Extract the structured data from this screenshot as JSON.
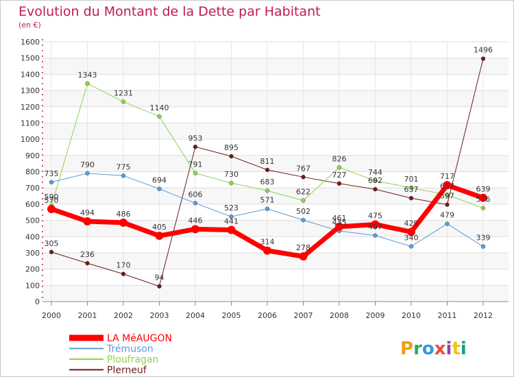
{
  "title": "Evolution du Montant de la Dette par Habitant",
  "subtitle": "(en €)",
  "logo": "Proxiti",
  "colors": {
    "title": "#c0185a",
    "grid": "#dddddd",
    "axis": "#c0185a",
    "bg_band": "#f4f4f4"
  },
  "chart_data": {
    "type": "line",
    "title": "Evolution du Montant de la Dette par Habitant",
    "subtitle": "(en €)",
    "xlabel": "",
    "ylabel": "",
    "ylim": [
      0,
      1600
    ],
    "y_ticks": [
      0,
      100,
      200,
      300,
      400,
      500,
      600,
      700,
      800,
      900,
      1000,
      1100,
      1200,
      1300,
      1400,
      1500,
      1600
    ],
    "categories": [
      "2000",
      "2001",
      "2002",
      "2003",
      "2004",
      "2005",
      "2006",
      "2007",
      "2008",
      "2009",
      "2010",
      "2011",
      "2012"
    ],
    "grid": true,
    "legend_position": "bottom-left",
    "series": [
      {
        "name": "LA MéAUGON",
        "color": "#ff0000",
        "width": 7,
        "marker": 6,
        "values": [
          570,
          494,
          486,
          405,
          446,
          441,
          314,
          278,
          461,
          475,
          429,
          717,
          639
        ]
      },
      {
        "name": "Trémuson",
        "color": "#5b9bd5",
        "width": 1,
        "marker": 3,
        "values": [
          735,
          790,
          775,
          694,
          606,
          523,
          571,
          502,
          435,
          407,
          340,
          479,
          339
        ]
      },
      {
        "name": "Ploufragan",
        "color": "#8fd34a",
        "width": 1,
        "marker": 3,
        "values": [
          590,
          1343,
          1231,
          1140,
          791,
          730,
          683,
          622,
          826,
          744,
          701,
          657,
          576
        ]
      },
      {
        "name": "Plerneuf",
        "color": "#6b1a1a",
        "width": 1,
        "marker": 3,
        "values": [
          305,
          236,
          170,
          94,
          953,
          895,
          811,
          767,
          727,
          692,
          637,
          597,
          1496
        ]
      }
    ],
    "data_labels": [
      {
        "series": 0,
        "index": 0,
        "text": "570"
      },
      {
        "series": 0,
        "index": 1,
        "text": "494"
      },
      {
        "series": 0,
        "index": 2,
        "text": "486"
      },
      {
        "series": 0,
        "index": 3,
        "text": "405"
      },
      {
        "series": 0,
        "index": 4,
        "text": "446"
      },
      {
        "series": 0,
        "index": 5,
        "text": "441"
      },
      {
        "series": 0,
        "index": 6,
        "text": "314"
      },
      {
        "series": 0,
        "index": 7,
        "text": "278"
      },
      {
        "series": 0,
        "index": 8,
        "text": "461"
      },
      {
        "series": 0,
        "index": 9,
        "text": "475"
      },
      {
        "series": 0,
        "index": 10,
        "text": "429"
      },
      {
        "series": 0,
        "index": 11,
        "text": "717"
      },
      {
        "series": 0,
        "index": 12,
        "text": "639"
      },
      {
        "series": 1,
        "index": 0,
        "text": "735"
      },
      {
        "series": 1,
        "index": 1,
        "text": "790"
      },
      {
        "series": 1,
        "index": 2,
        "text": "775"
      },
      {
        "series": 1,
        "index": 3,
        "text": "694"
      },
      {
        "series": 1,
        "index": 4,
        "text": "606"
      },
      {
        "series": 1,
        "index": 5,
        "text": "523"
      },
      {
        "series": 1,
        "index": 6,
        "text": "571"
      },
      {
        "series": 1,
        "index": 7,
        "text": "502"
      },
      {
        "series": 1,
        "index": 8,
        "text": "435"
      },
      {
        "series": 1,
        "index": 9,
        "text": "407"
      },
      {
        "series": 1,
        "index": 10,
        "text": "340"
      },
      {
        "series": 1,
        "index": 11,
        "text": "479"
      },
      {
        "series": 1,
        "index": 12,
        "text": "339"
      },
      {
        "series": 2,
        "index": 0,
        "text": "590"
      },
      {
        "series": 2,
        "index": 1,
        "text": "1343"
      },
      {
        "series": 2,
        "index": 2,
        "text": "1231"
      },
      {
        "series": 2,
        "index": 3,
        "text": "1140"
      },
      {
        "series": 2,
        "index": 4,
        "text": "791"
      },
      {
        "series": 2,
        "index": 5,
        "text": "730"
      },
      {
        "series": 2,
        "index": 6,
        "text": "683"
      },
      {
        "series": 2,
        "index": 7,
        "text": "622"
      },
      {
        "series": 2,
        "index": 8,
        "text": "826"
      },
      {
        "series": 2,
        "index": 9,
        "text": "744"
      },
      {
        "series": 2,
        "index": 10,
        "text": "701"
      },
      {
        "series": 2,
        "index": 11,
        "text": "657"
      },
      {
        "series": 2,
        "index": 12,
        "text": "576"
      },
      {
        "series": 3,
        "index": 0,
        "text": "305"
      },
      {
        "series": 3,
        "index": 1,
        "text": "236"
      },
      {
        "series": 3,
        "index": 2,
        "text": "170"
      },
      {
        "series": 3,
        "index": 3,
        "text": "94"
      },
      {
        "series": 3,
        "index": 4,
        "text": "953"
      },
      {
        "series": 3,
        "index": 5,
        "text": "895"
      },
      {
        "series": 3,
        "index": 6,
        "text": "811"
      },
      {
        "series": 3,
        "index": 7,
        "text": "767"
      },
      {
        "series": 3,
        "index": 8,
        "text": "727"
      },
      {
        "series": 3,
        "index": 9,
        "text": "692"
      },
      {
        "series": 3,
        "index": 10,
        "text": "637"
      },
      {
        "series": 3,
        "index": 11,
        "text": "597"
      },
      {
        "series": 3,
        "index": 12,
        "text": "1496"
      }
    ]
  }
}
